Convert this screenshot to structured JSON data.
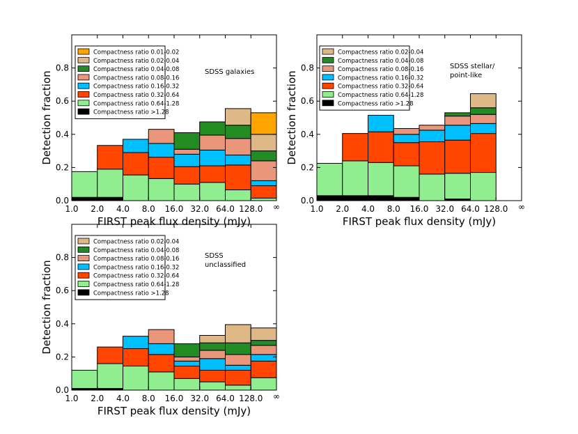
{
  "chart_data": [
    {
      "type": "bar",
      "stacked": true,
      "title": "",
      "annotation": [
        "SDSS galaxies"
      ],
      "xlabel": "FIRST peak flux density (mJy)",
      "ylabel": "Detection fraction",
      "ylim": [
        0,
        1.0
      ],
      "yticks": [
        "0.0",
        "0.2",
        "0.4",
        "0.6",
        "0.8"
      ],
      "bin_edge_labels": [
        "1.0",
        "2.0",
        "4.0",
        "8.0",
        "16.0",
        "32.0",
        "64.0",
        "128.0",
        "∞"
      ],
      "legend": [
        "Compactness ratio 0.01-0.02",
        "Compactness ratio 0.02-0.04",
        "Compactness ratio 0.04-0.08",
        "Compactness ratio 0.08-0.16",
        "Compactness ratio 0.16-0.32",
        "Compactness ratio 0.32-0.64",
        "Compactness ratio 0.64-1.28",
        "Compactness ratio >1.28"
      ],
      "series": [
        {
          "name": "Compactness ratio >1.28",
          "color": "#000000",
          "values": [
            0.02,
            0.02,
            0.0,
            0.0,
            0.0,
            0.0,
            0.0,
            0.0
          ]
        },
        {
          "name": "Compactness ratio 0.64-1.28",
          "color": "#90EE90",
          "values": [
            0.155,
            0.17,
            0.155,
            0.133,
            0.1,
            0.11,
            0.065,
            0.015
          ]
        },
        {
          "name": "Compactness ratio 0.32-0.64",
          "color": "#FF4500",
          "values": [
            0.0,
            0.143,
            0.135,
            0.129,
            0.105,
            0.1,
            0.15,
            0.075
          ]
        },
        {
          "name": "Compactness ratio 0.16-0.32",
          "color": "#00BFFF",
          "values": [
            0.0,
            0.0,
            0.08,
            0.083,
            0.075,
            0.095,
            0.06,
            0.03
          ]
        },
        {
          "name": "Compactness ratio 0.08-0.16",
          "color": "#E9967A",
          "values": [
            0.0,
            0.0,
            0.0,
            0.085,
            0.03,
            0.09,
            0.1,
            0.12
          ]
        },
        {
          "name": "Compactness ratio 0.04-0.08",
          "color": "#228B22",
          "values": [
            0.0,
            0.0,
            0.0,
            0.0,
            0.1,
            0.08,
            0.08,
            0.06
          ]
        },
        {
          "name": "Compactness ratio 0.02-0.04",
          "color": "#DEB887",
          "values": [
            0.0,
            0.0,
            0.0,
            0.0,
            0.0,
            0.0,
            0.1,
            0.1
          ]
        },
        {
          "name": "Compactness ratio 0.01-0.02",
          "color": "#FFA500",
          "values": [
            0.0,
            0.0,
            0.0,
            0.0,
            0.0,
            0.0,
            0.0,
            0.13
          ]
        }
      ]
    },
    {
      "type": "bar",
      "stacked": true,
      "title": "",
      "annotation": [
        "SDSS stellar/",
        "point-like"
      ],
      "xlabel": "FIRST peak flux density (mJy)",
      "ylabel": "Detection fraction",
      "ylim": [
        0,
        1.0
      ],
      "yticks": [
        "0.0",
        "0.2",
        "0.4",
        "0.6",
        "0.8"
      ],
      "bin_edge_labels": [
        "1.0",
        "2.0",
        "4.0",
        "8.0",
        "16.0",
        "32.0",
        "64.0",
        "128.0",
        "∞"
      ],
      "legend": [
        "Compactness ratio 0.02-0.04",
        "Compactness ratio 0.04-0.08",
        "Compactness ratio 0.08-0.16",
        "Compactness ratio 0.16-0.32",
        "Compactness ratio 0.32-0.64",
        "Compactness ratio 0.64-1.28",
        "Compactness ratio >1.28"
      ],
      "series": [
        {
          "name": "Compactness ratio >1.28",
          "color": "#000000",
          "values": [
            0.03,
            0.03,
            0.03,
            0.02,
            0.0,
            0.01,
            0.0,
            0.0
          ]
        },
        {
          "name": "Compactness ratio 0.64-1.28",
          "color": "#90EE90",
          "values": [
            0.195,
            0.21,
            0.2,
            0.19,
            0.16,
            0.155,
            0.17,
            0.0
          ]
        },
        {
          "name": "Compactness ratio 0.32-0.64",
          "color": "#FF4500",
          "values": [
            0.0,
            0.165,
            0.185,
            0.14,
            0.195,
            0.2,
            0.235,
            0.0
          ]
        },
        {
          "name": "Compactness ratio 0.16-0.32",
          "color": "#00BFFF",
          "values": [
            0.0,
            0.0,
            0.1,
            0.05,
            0.07,
            0.09,
            0.06,
            0.0
          ]
        },
        {
          "name": "Compactness ratio 0.08-0.16",
          "color": "#E9967A",
          "values": [
            0.0,
            0.0,
            0.0,
            0.035,
            0.03,
            0.055,
            0.055,
            0.0
          ]
        },
        {
          "name": "Compactness ratio 0.04-0.08",
          "color": "#228B22",
          "values": [
            0.0,
            0.0,
            0.0,
            0.0,
            0.0,
            0.02,
            0.04,
            0.0
          ]
        },
        {
          "name": "Compactness ratio 0.02-0.04",
          "color": "#DEB887",
          "values": [
            0.0,
            0.0,
            0.0,
            0.0,
            0.0,
            0.0,
            0.085,
            0.0
          ]
        }
      ]
    },
    {
      "type": "bar",
      "stacked": true,
      "title": "",
      "annotation": [
        "SDSS",
        "unclassified"
      ],
      "xlabel": "FIRST peak flux density (mJy)",
      "ylabel": "Detection fraction",
      "ylim": [
        0,
        1.0
      ],
      "yticks": [
        "0.0",
        "0.2",
        "0.4",
        "0.6",
        "0.8"
      ],
      "bin_edge_labels": [
        "1.0",
        "2.0",
        "4.0",
        "8.0",
        "16.0",
        "32.0",
        "64.0",
        "128.0",
        "∞"
      ],
      "legend": [
        "Compactness ratio 0.02-0.04",
        "Compactness ratio 0.04-0.08",
        "Compactness ratio 0.08-0.16",
        "Compactness ratio 0.16-0.32",
        "Compactness ratio 0.32-0.64",
        "Compactness ratio 0.64-1.28",
        "Compactness ratio >1.28"
      ],
      "series": [
        {
          "name": "Compactness ratio >1.28",
          "color": "#000000",
          "values": [
            0.01,
            0.01,
            0.0,
            0.0,
            0.0,
            0.0,
            0.0,
            0.0
          ]
        },
        {
          "name": "Compactness ratio 0.64-1.28",
          "color": "#90EE90",
          "values": [
            0.11,
            0.15,
            0.145,
            0.11,
            0.07,
            0.05,
            0.03,
            0.075
          ]
        },
        {
          "name": "Compactness ratio 0.32-0.64",
          "color": "#FF4500",
          "values": [
            0.0,
            0.1,
            0.105,
            0.105,
            0.075,
            0.07,
            0.09,
            0.1
          ]
        },
        {
          "name": "Compactness ratio 0.16-0.32",
          "color": "#00BFFF",
          "values": [
            0.0,
            0.0,
            0.075,
            0.065,
            0.03,
            0.07,
            0.03,
            0.04
          ]
        },
        {
          "name": "Compactness ratio 0.08-0.16",
          "color": "#E9967A",
          "values": [
            0.0,
            0.0,
            0.0,
            0.085,
            0.025,
            0.05,
            0.065,
            0.055
          ]
        },
        {
          "name": "Compactness ratio 0.04-0.08",
          "color": "#228B22",
          "values": [
            0.0,
            0.0,
            0.0,
            0.0,
            0.08,
            0.045,
            0.07,
            0.03
          ]
        },
        {
          "name": "Compactness ratio 0.02-0.04",
          "color": "#DEB887",
          "values": [
            0.0,
            0.0,
            0.0,
            0.0,
            0.0,
            0.045,
            0.11,
            0.075
          ]
        }
      ]
    }
  ]
}
